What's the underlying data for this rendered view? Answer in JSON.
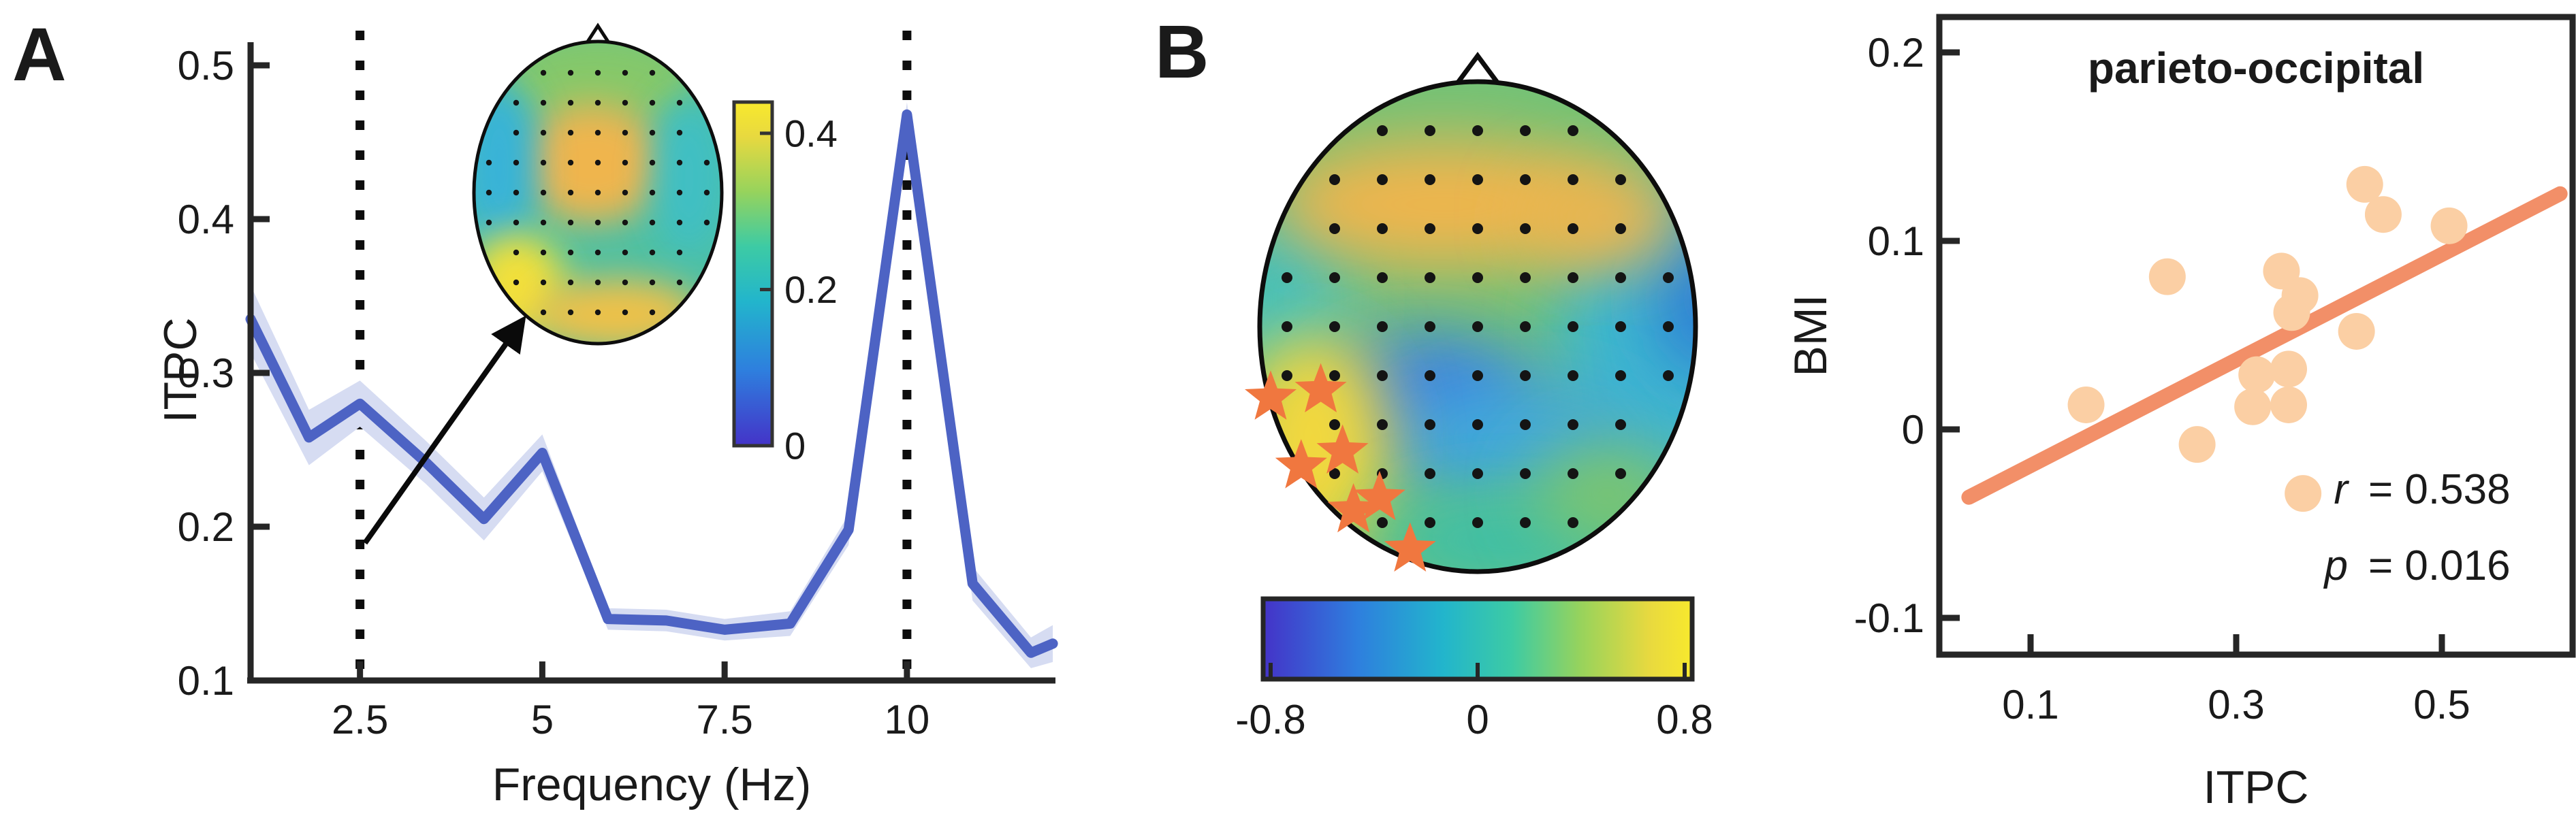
{
  "panel_a": {
    "label": "A",
    "xlabel": "Frequency (Hz)",
    "ylabel": "ITPC"
  },
  "panel_b": {
    "label": "B"
  },
  "scatter": {
    "title": "parieto-occipital",
    "xlabel": "ITPC",
    "ylabel": "BMI",
    "stats": {
      "r_var": "r",
      "r_val": "= 0.538",
      "p_var": "p",
      "p_val": "= 0.016"
    }
  },
  "colors": {
    "line_blue": "#4D63C4",
    "band_blue": "#D6DCF2",
    "scatter_point": "#FBCFA4",
    "fit_line": "#F28F68",
    "star_orange": "#F0773F",
    "axis": "#262626",
    "electrode_dot": "#141414",
    "colormap_stops": [
      "#4433C8",
      "#2E7FDE",
      "#22B5CC",
      "#3DCBA4",
      "#97D35C",
      "#E8D93F",
      "#F8E92D"
    ],
    "colormap_offsets": [
      0,
      0.22,
      0.42,
      0.58,
      0.74,
      0.9,
      1
    ]
  },
  "chart_data": [
    {
      "type": "line",
      "panel": "A",
      "xlabel": "Frequency (Hz)",
      "ylabel": "ITPC",
      "x": [
        1.0,
        1.8,
        2.5,
        3.4,
        4.2,
        5.0,
        5.9,
        6.7,
        7.5,
        8.4,
        9.2,
        10.0,
        10.9,
        11.7,
        12.0
      ],
      "series": [
        {
          "name": "ITPC",
          "values": [
            0.335,
            0.258,
            0.28,
            0.242,
            0.205,
            0.248,
            0.14,
            0.139,
            0.133,
            0.137,
            0.198,
            0.468,
            0.163,
            0.118,
            0.124
          ]
        }
      ],
      "band_halfwidth": [
        0.022,
        0.018,
        0.015,
        0.014,
        0.014,
        0.012,
        0.007,
        0.007,
        0.007,
        0.008,
        0.01,
        0.008,
        0.011,
        0.01,
        0.012
      ],
      "xlim": [
        1,
        12.1
      ],
      "ylim": [
        0.1,
        0.52
      ],
      "x_ticks": [
        2.5,
        5,
        7.5,
        10
      ],
      "y_ticks": [
        0.1,
        0.2,
        0.3,
        0.4,
        0.5
      ],
      "vlines": [
        2.5,
        10
      ],
      "grid": false,
      "inset": {
        "type": "topomap",
        "description": "ITPC scalp topography at 2.5 Hz",
        "colorbar_ticks": [
          0,
          0.2,
          0.4
        ],
        "colorbar_range": [
          0,
          0.44
        ]
      }
    },
    {
      "type": "heatmap",
      "subtype": "topomap",
      "panel": "B",
      "description": "correlation topography, stars mark significant left parieto-occipital electrodes",
      "colorbar_ticks": [
        -0.8,
        0,
        0.8
      ],
      "colorbar_range": [
        -0.8,
        0.8
      ],
      "significant_electrodes": {
        "marker": "star",
        "count": 7,
        "region": "left parieto-occipital"
      },
      "star_positions_unit": [
        [
          -0.95,
          0.29
        ],
        [
          -0.72,
          0.26
        ],
        [
          -0.81,
          0.57
        ],
        [
          -0.62,
          0.51
        ],
        [
          -0.57,
          0.75
        ],
        [
          -0.45,
          0.7
        ],
        [
          -0.31,
          0.91
        ]
      ]
    },
    {
      "type": "scatter",
      "panel": "B",
      "title": "parieto-occipital",
      "xlabel": "ITPC",
      "ylabel": "BMI",
      "xlim": [
        0.01,
        0.63
      ],
      "ylim": [
        -0.12,
        0.22
      ],
      "x_ticks": [
        0.1,
        0.3,
        0.5
      ],
      "y_ticks": [
        -0.1,
        0,
        0.1,
        0.2
      ],
      "points": [
        [
          0.425,
          0.13
        ],
        [
          0.443,
          0.114
        ],
        [
          0.507,
          0.108
        ],
        [
          0.233,
          0.081
        ],
        [
          0.344,
          0.084
        ],
        [
          0.362,
          0.071
        ],
        [
          0.354,
          0.062
        ],
        [
          0.417,
          0.052
        ],
        [
          0.32,
          0.029
        ],
        [
          0.351,
          0.032
        ],
        [
          0.316,
          0.012
        ],
        [
          0.351,
          0.013
        ],
        [
          0.154,
          0.013
        ],
        [
          0.262,
          -0.008
        ],
        [
          0.365,
          -0.034
        ]
      ],
      "fit_line": {
        "x1": 0.04,
        "y1": -0.036,
        "x2": 0.615,
        "y2": 0.125
      },
      "r": 0.538,
      "p": 0.016
    }
  ]
}
